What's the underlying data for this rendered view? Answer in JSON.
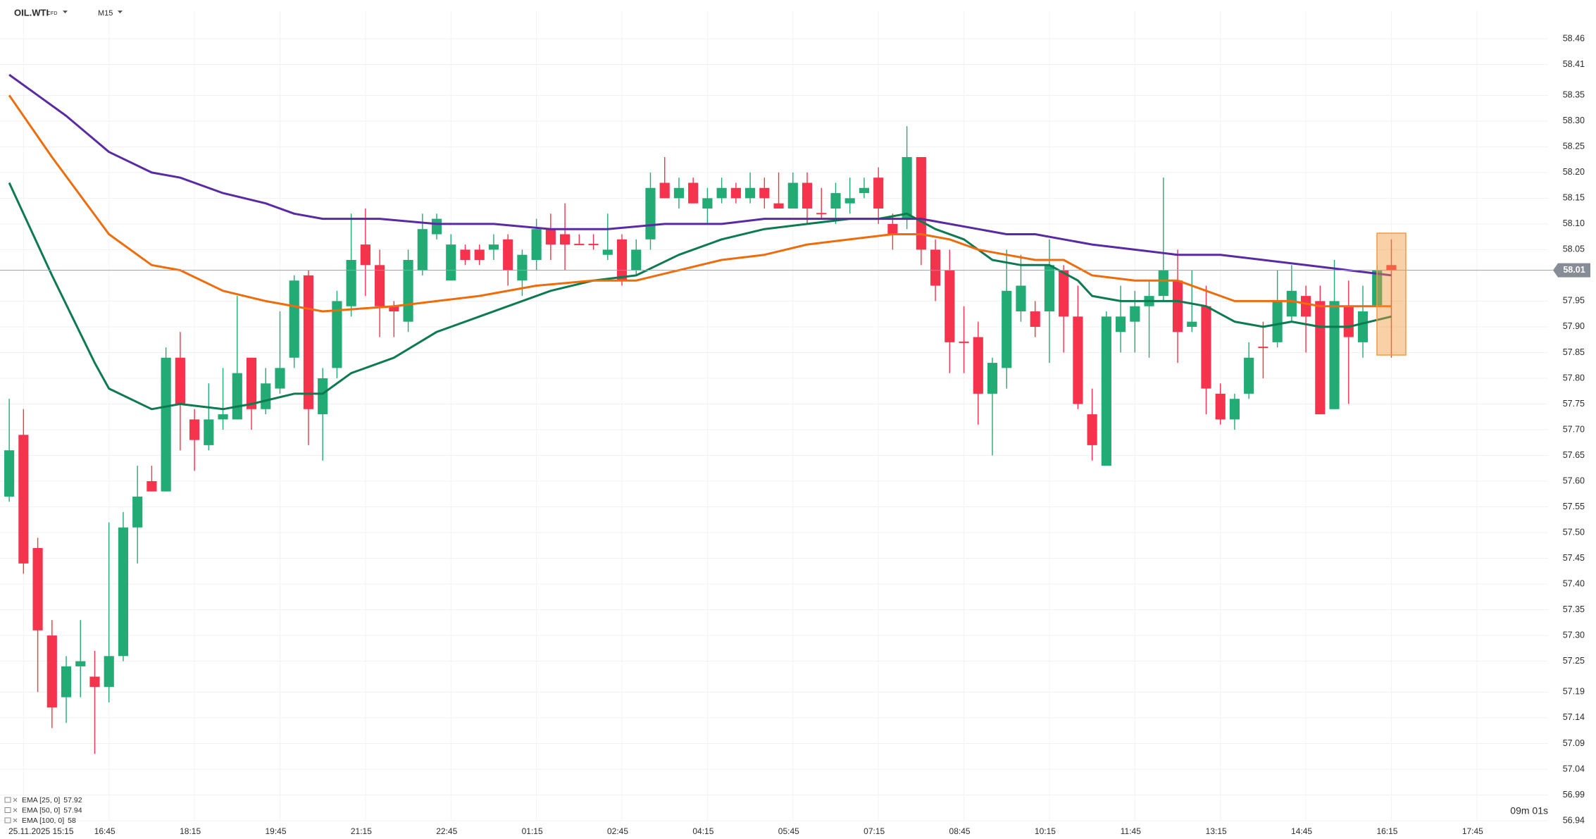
{
  "chart_data": {
    "type": "candlestick",
    "symbol": "OIL.WTI",
    "instrument_type": "CFD",
    "timeframe": "M15",
    "xlim": [
      -0.5,
      108
    ],
    "xticks": [
      {
        "value": 1,
        "label": "25.11.2025 15:15"
      },
      {
        "value": 7,
        "label": "16:45"
      },
      {
        "value": 13,
        "label": "18:15"
      },
      {
        "value": 19,
        "label": "19:45"
      },
      {
        "value": 25,
        "label": "21:15"
      },
      {
        "value": 31,
        "label": "22:45"
      },
      {
        "value": 37,
        "label": "01:15"
      },
      {
        "value": 43,
        "label": "02:45"
      },
      {
        "value": 49,
        "label": "04:15"
      },
      {
        "value": 55,
        "label": "05:45"
      },
      {
        "value": 61,
        "label": "07:15"
      },
      {
        "value": 67,
        "label": "08:45"
      },
      {
        "value": 73,
        "label": "10:15"
      },
      {
        "value": 79,
        "label": "11:45"
      },
      {
        "value": 85,
        "label": "13:15"
      },
      {
        "value": 91,
        "label": "14:45"
      },
      {
        "value": 97,
        "label": "16:15"
      },
      {
        "value": 103,
        "label": "17:45"
      }
    ],
    "ylim": [
      56.94,
      58.46
    ],
    "yticks": [
      58.46,
      58.41,
      58.35,
      {
        "value": 58.3,
        "label": "58.30"
      },
      58.25,
      {
        "value": 58.2,
        "label": "58.20"
      },
      58.15,
      {
        "value": 58.1,
        "label": "58.10"
      },
      58.05,
      57.95,
      {
        "value": 57.9,
        "label": "57.90"
      },
      57.85,
      {
        "value": 57.8,
        "label": "57.80"
      },
      57.75,
      {
        "value": 57.7,
        "label": "57.70"
      },
      57.65,
      {
        "value": 57.6,
        "label": "57.60"
      },
      57.55,
      {
        "value": 57.5,
        "label": "57.50"
      },
      57.45,
      {
        "value": 57.4,
        "label": "57.40"
      },
      57.35,
      {
        "value": 57.3,
        "label": "57.30"
      },
      57.25,
      57.19,
      57.14,
      57.09,
      57.04,
      56.99,
      56.94
    ],
    "grid": true,
    "candles": {
      "up_color": "#22ab74",
      "down_color": "#f5334c",
      "open": [
        57.57,
        57.69,
        57.47,
        57.3,
        57.18,
        57.24,
        57.22,
        57.2,
        57.26,
        57.51,
        57.6,
        57.58,
        57.84,
        57.72,
        57.67,
        57.72,
        57.72,
        57.84,
        57.74,
        57.78,
        57.84,
        58.0,
        57.73,
        57.82,
        57.94,
        58.06,
        58.02,
        57.94,
        57.91,
        58.01,
        58.08,
        57.99,
        58.05,
        58.05,
        58.05,
        58.07,
        57.99,
        58.03,
        58.09,
        58.08,
        58.06,
        58.06,
        58.04,
        58.07,
        58.01,
        58.07,
        58.18,
        58.15,
        58.18,
        58.13,
        58.15,
        58.17,
        58.15,
        58.17,
        58.14,
        58.13,
        58.18,
        58.12,
        58.13,
        58.14,
        58.16,
        58.19,
        58.1,
        58.11,
        58.23,
        58.05,
        58.01,
        57.87,
        57.88,
        57.77,
        57.82,
        57.93,
        57.93,
        57.93,
        58.01,
        57.92,
        57.73,
        57.63,
        57.89,
        57.91,
        57.94,
        57.96,
        57.99,
        57.9,
        57.94,
        57.77,
        57.72,
        57.77,
        57.86,
        57.87,
        57.92,
        57.96,
        57.95,
        57.74,
        57.94,
        57.87,
        57.94,
        58.02
      ],
      "high": [
        57.76,
        57.74,
        57.49,
        57.33,
        57.26,
        57.33,
        57.27,
        57.52,
        57.54,
        57.63,
        57.63,
        57.86,
        57.89,
        57.74,
        57.79,
        57.82,
        57.96,
        57.84,
        57.82,
        57.93,
        58.0,
        58.01,
        57.82,
        57.97,
        58.12,
        58.13,
        58.05,
        57.95,
        58.05,
        58.12,
        58.12,
        58.08,
        58.06,
        58.06,
        58.08,
        58.08,
        58.05,
        58.11,
        58.12,
        58.14,
        58.08,
        58.08,
        58.12,
        58.08,
        58.07,
        58.2,
        58.23,
        58.19,
        58.19,
        58.17,
        58.19,
        58.18,
        58.2,
        58.19,
        58.2,
        58.2,
        58.2,
        58.17,
        58.18,
        58.19,
        58.19,
        58.21,
        58.12,
        58.29,
        58.23,
        58.07,
        58.05,
        57.94,
        57.91,
        57.84,
        58.05,
        58.04,
        57.95,
        58.07,
        58.02,
        57.98,
        57.78,
        57.93,
        57.98,
        57.97,
        57.99,
        58.19,
        58.05,
        58.01,
        57.98,
        57.79,
        57.77,
        57.87,
        57.91,
        58.01,
        58.02,
        57.98,
        57.98,
        58.03,
        57.99,
        57.98,
        58.02,
        58.07
      ],
      "low": [
        57.56,
        57.42,
        57.19,
        57.12,
        57.13,
        57.18,
        57.07,
        57.17,
        57.25,
        57.44,
        57.58,
        57.58,
        57.66,
        57.62,
        57.66,
        57.7,
        57.72,
        57.7,
        57.73,
        57.77,
        57.82,
        57.67,
        57.64,
        57.8,
        57.92,
        57.96,
        57.88,
        57.88,
        57.89,
        58.0,
        58.07,
        57.99,
        58.02,
        58.02,
        58.03,
        57.98,
        57.96,
        58.01,
        58.03,
        58.01,
        58.06,
        58.05,
        58.03,
        57.98,
        58.0,
        58.05,
        58.15,
        58.13,
        58.14,
        58.1,
        58.14,
        58.14,
        58.14,
        58.13,
        58.13,
        58.13,
        58.1,
        58.11,
        58.1,
        58.12,
        58.15,
        58.1,
        58.05,
        58.09,
        58.02,
        57.95,
        57.81,
        57.81,
        57.71,
        57.65,
        57.78,
        57.91,
        57.88,
        57.83,
        57.85,
        57.74,
        57.64,
        57.63,
        57.85,
        57.85,
        57.84,
        57.95,
        57.83,
        57.89,
        57.73,
        57.71,
        57.7,
        57.76,
        57.8,
        57.86,
        57.91,
        57.85,
        57.73,
        57.74,
        57.75,
        57.84,
        57.94,
        57.84
      ],
      "close": [
        57.66,
        57.44,
        57.31,
        57.16,
        57.24,
        57.25,
        57.2,
        57.26,
        57.51,
        57.57,
        57.58,
        57.84,
        57.75,
        57.68,
        57.72,
        57.73,
        57.81,
        57.74,
        57.79,
        57.82,
        57.99,
        57.74,
        57.8,
        57.95,
        58.03,
        58.02,
        57.94,
        57.93,
        58.03,
        58.09,
        58.11,
        58.06,
        58.03,
        58.03,
        58.06,
        58.01,
        58.04,
        58.09,
        58.06,
        58.06,
        58.06,
        58.06,
        58.05,
        57.99,
        58.05,
        58.17,
        58.15,
        58.17,
        58.14,
        58.15,
        58.17,
        58.15,
        58.17,
        58.15,
        58.13,
        58.18,
        58.13,
        58.12,
        58.16,
        58.15,
        58.17,
        58.13,
        58.08,
        58.23,
        58.05,
        57.98,
        57.87,
        57.87,
        57.77,
        57.83,
        57.97,
        57.98,
        57.9,
        58.02,
        57.92,
        57.75,
        57.67,
        57.92,
        57.92,
        57.94,
        57.96,
        58.01,
        57.89,
        57.91,
        57.78,
        57.72,
        57.76,
        57.84,
        57.86,
        57.95,
        57.97,
        57.92,
        57.73,
        57.95,
        57.88,
        57.93,
        58.01,
        58.01
      ]
    },
    "series": [
      {
        "name": "EMA [25, 0]",
        "legend_value": 57.92,
        "color": "#0e7a51",
        "x": [
          0,
          3,
          6,
          7,
          10,
          12,
          15,
          17,
          20,
          22,
          24,
          27,
          30,
          33,
          35,
          38,
          41,
          44,
          47,
          50,
          53,
          56,
          59,
          61,
          63,
          65,
          67,
          69,
          71,
          73,
          75,
          76,
          78,
          80,
          82,
          84,
          86,
          88,
          90,
          92,
          94,
          97
        ],
        "values": [
          58.18,
          58.0,
          57.83,
          57.78,
          57.74,
          57.75,
          57.74,
          57.75,
          57.77,
          57.77,
          57.81,
          57.84,
          57.89,
          57.92,
          57.94,
          57.97,
          57.99,
          58.0,
          58.04,
          58.07,
          58.09,
          58.1,
          58.11,
          58.11,
          58.12,
          58.09,
          58.07,
          58.03,
          58.02,
          58.02,
          57.99,
          57.96,
          57.95,
          57.95,
          57.95,
          57.94,
          57.91,
          57.9,
          57.91,
          57.9,
          57.9,
          57.92
        ]
      },
      {
        "name": "EMA [50, 0]",
        "legend_value": 57.94,
        "color": "#ee6c0c",
        "x": [
          0,
          3,
          7,
          10,
          12,
          15,
          18,
          22,
          27,
          30,
          33,
          37,
          41,
          44,
          47,
          50,
          53,
          56,
          59,
          62,
          64,
          66,
          68,
          70,
          72,
          74,
          76,
          79,
          82,
          84,
          86,
          88,
          90,
          92,
          94,
          97
        ],
        "values": [
          58.35,
          58.23,
          58.08,
          58.02,
          58.01,
          57.97,
          57.95,
          57.93,
          57.94,
          57.95,
          57.96,
          57.98,
          57.99,
          57.99,
          58.01,
          58.03,
          58.04,
          58.06,
          58.07,
          58.08,
          58.08,
          58.07,
          58.05,
          58.04,
          58.03,
          58.03,
          58.0,
          57.99,
          57.99,
          57.97,
          57.95,
          57.95,
          57.95,
          57.94,
          57.94,
          57.94
        ]
      },
      {
        "name": "EMA [100, 0]",
        "legend_value": 58.0,
        "color": "#5a2aa3",
        "x": [
          0,
          2,
          4,
          7,
          10,
          12,
          15,
          18,
          20,
          22,
          26,
          30,
          34,
          38,
          42,
          46,
          50,
          53,
          56,
          59,
          62,
          64,
          66,
          68,
          70,
          72,
          74,
          76,
          79,
          82,
          85,
          88,
          91,
          94,
          97
        ],
        "values": [
          58.39,
          58.35,
          58.31,
          58.24,
          58.2,
          58.19,
          58.16,
          58.14,
          58.12,
          58.11,
          58.11,
          58.1,
          58.1,
          58.09,
          58.09,
          58.1,
          58.1,
          58.11,
          58.11,
          58.11,
          58.11,
          58.11,
          58.1,
          58.09,
          58.08,
          58.08,
          58.07,
          58.06,
          58.05,
          58.04,
          58.04,
          58.03,
          58.02,
          58.01,
          58.0
        ]
      }
    ],
    "last_price": 58.01,
    "timer": "09m 01s"
  }
}
